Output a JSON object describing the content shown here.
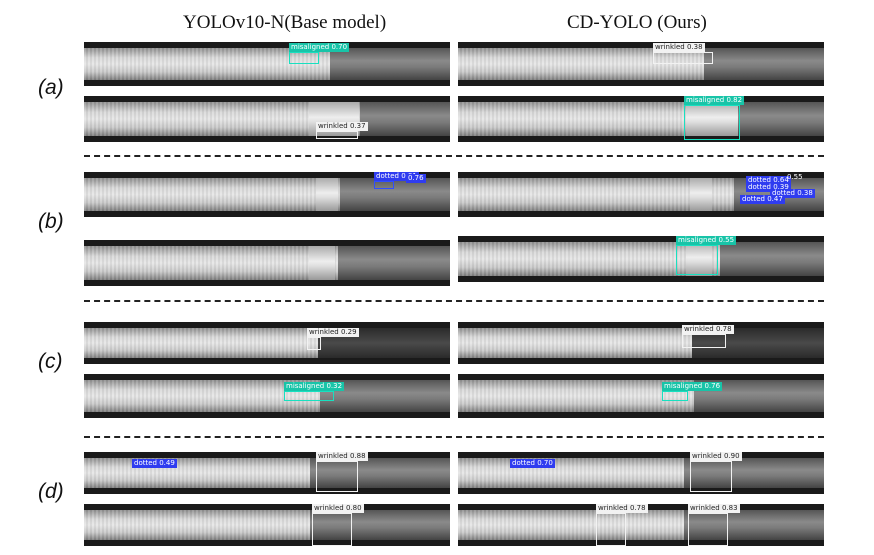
{
  "headers": {
    "left": "YOLOv10-N(Base model)",
    "right": "CD-YOLO (Ours)"
  },
  "groups": [
    "(a)",
    "(b)",
    "(c)",
    "(d)"
  ],
  "panels": {
    "a1_left": {
      "detections": [
        {
          "cls": "misaligned",
          "score": "0.70"
        }
      ]
    },
    "a1_right": {
      "detections": [
        {
          "cls": "wrinkled",
          "score": "0.38"
        }
      ]
    },
    "a2_left": {
      "detections": [
        {
          "cls": "wrinkled",
          "score": "0.37"
        }
      ]
    },
    "a2_right": {
      "detections": [
        {
          "cls": "misaligned",
          "score": "0.82"
        }
      ]
    },
    "b1_left": {
      "detections": [
        {
          "cls": "dotted",
          "score": "0.81"
        },
        {
          "cls": "",
          "score": "0.76"
        }
      ]
    },
    "b1_right": {
      "detections": [
        {
          "cls": "dotted",
          "score": "0.64"
        },
        {
          "cls": "",
          "score": "0.55"
        },
        {
          "cls": "dotted",
          "score": "0.39"
        },
        {
          "cls": "dotted",
          "score": "0.38"
        },
        {
          "cls": "dotted",
          "score": "0.47"
        }
      ]
    },
    "b2_right": {
      "detections": [
        {
          "cls": "misaligned",
          "score": "0.55"
        }
      ]
    },
    "c1_left": {
      "detections": [
        {
          "cls": "wrinkled",
          "score": "0.29"
        }
      ]
    },
    "c1_right": {
      "detections": [
        {
          "cls": "wrinkled",
          "score": "0.78"
        }
      ]
    },
    "c2_left": {
      "detections": [
        {
          "cls": "misaligned",
          "score": "0.32"
        }
      ]
    },
    "c2_right": {
      "detections": [
        {
          "cls": "misaligned",
          "score": "0.76"
        }
      ]
    },
    "d1_left": {
      "detections": [
        {
          "cls": "dotted",
          "score": "0.49"
        },
        {
          "cls": "wrinkled",
          "score": "0.88"
        }
      ]
    },
    "d1_right": {
      "detections": [
        {
          "cls": "dotted",
          "score": "0.70"
        },
        {
          "cls": "wrinkled",
          "score": "0.90"
        }
      ]
    },
    "d2_left": {
      "detections": [
        {
          "cls": "wrinkled",
          "score": "0.80"
        }
      ]
    },
    "d2_right": {
      "detections": [
        {
          "cls": "wrinkled",
          "score": "0.78"
        },
        {
          "cls": "wrinkled",
          "score": "0.83"
        }
      ]
    }
  },
  "colors": {
    "misaligned": "#18e0c0",
    "wrinkled": "#f2f2f2",
    "dotted": "#2f4dff"
  }
}
